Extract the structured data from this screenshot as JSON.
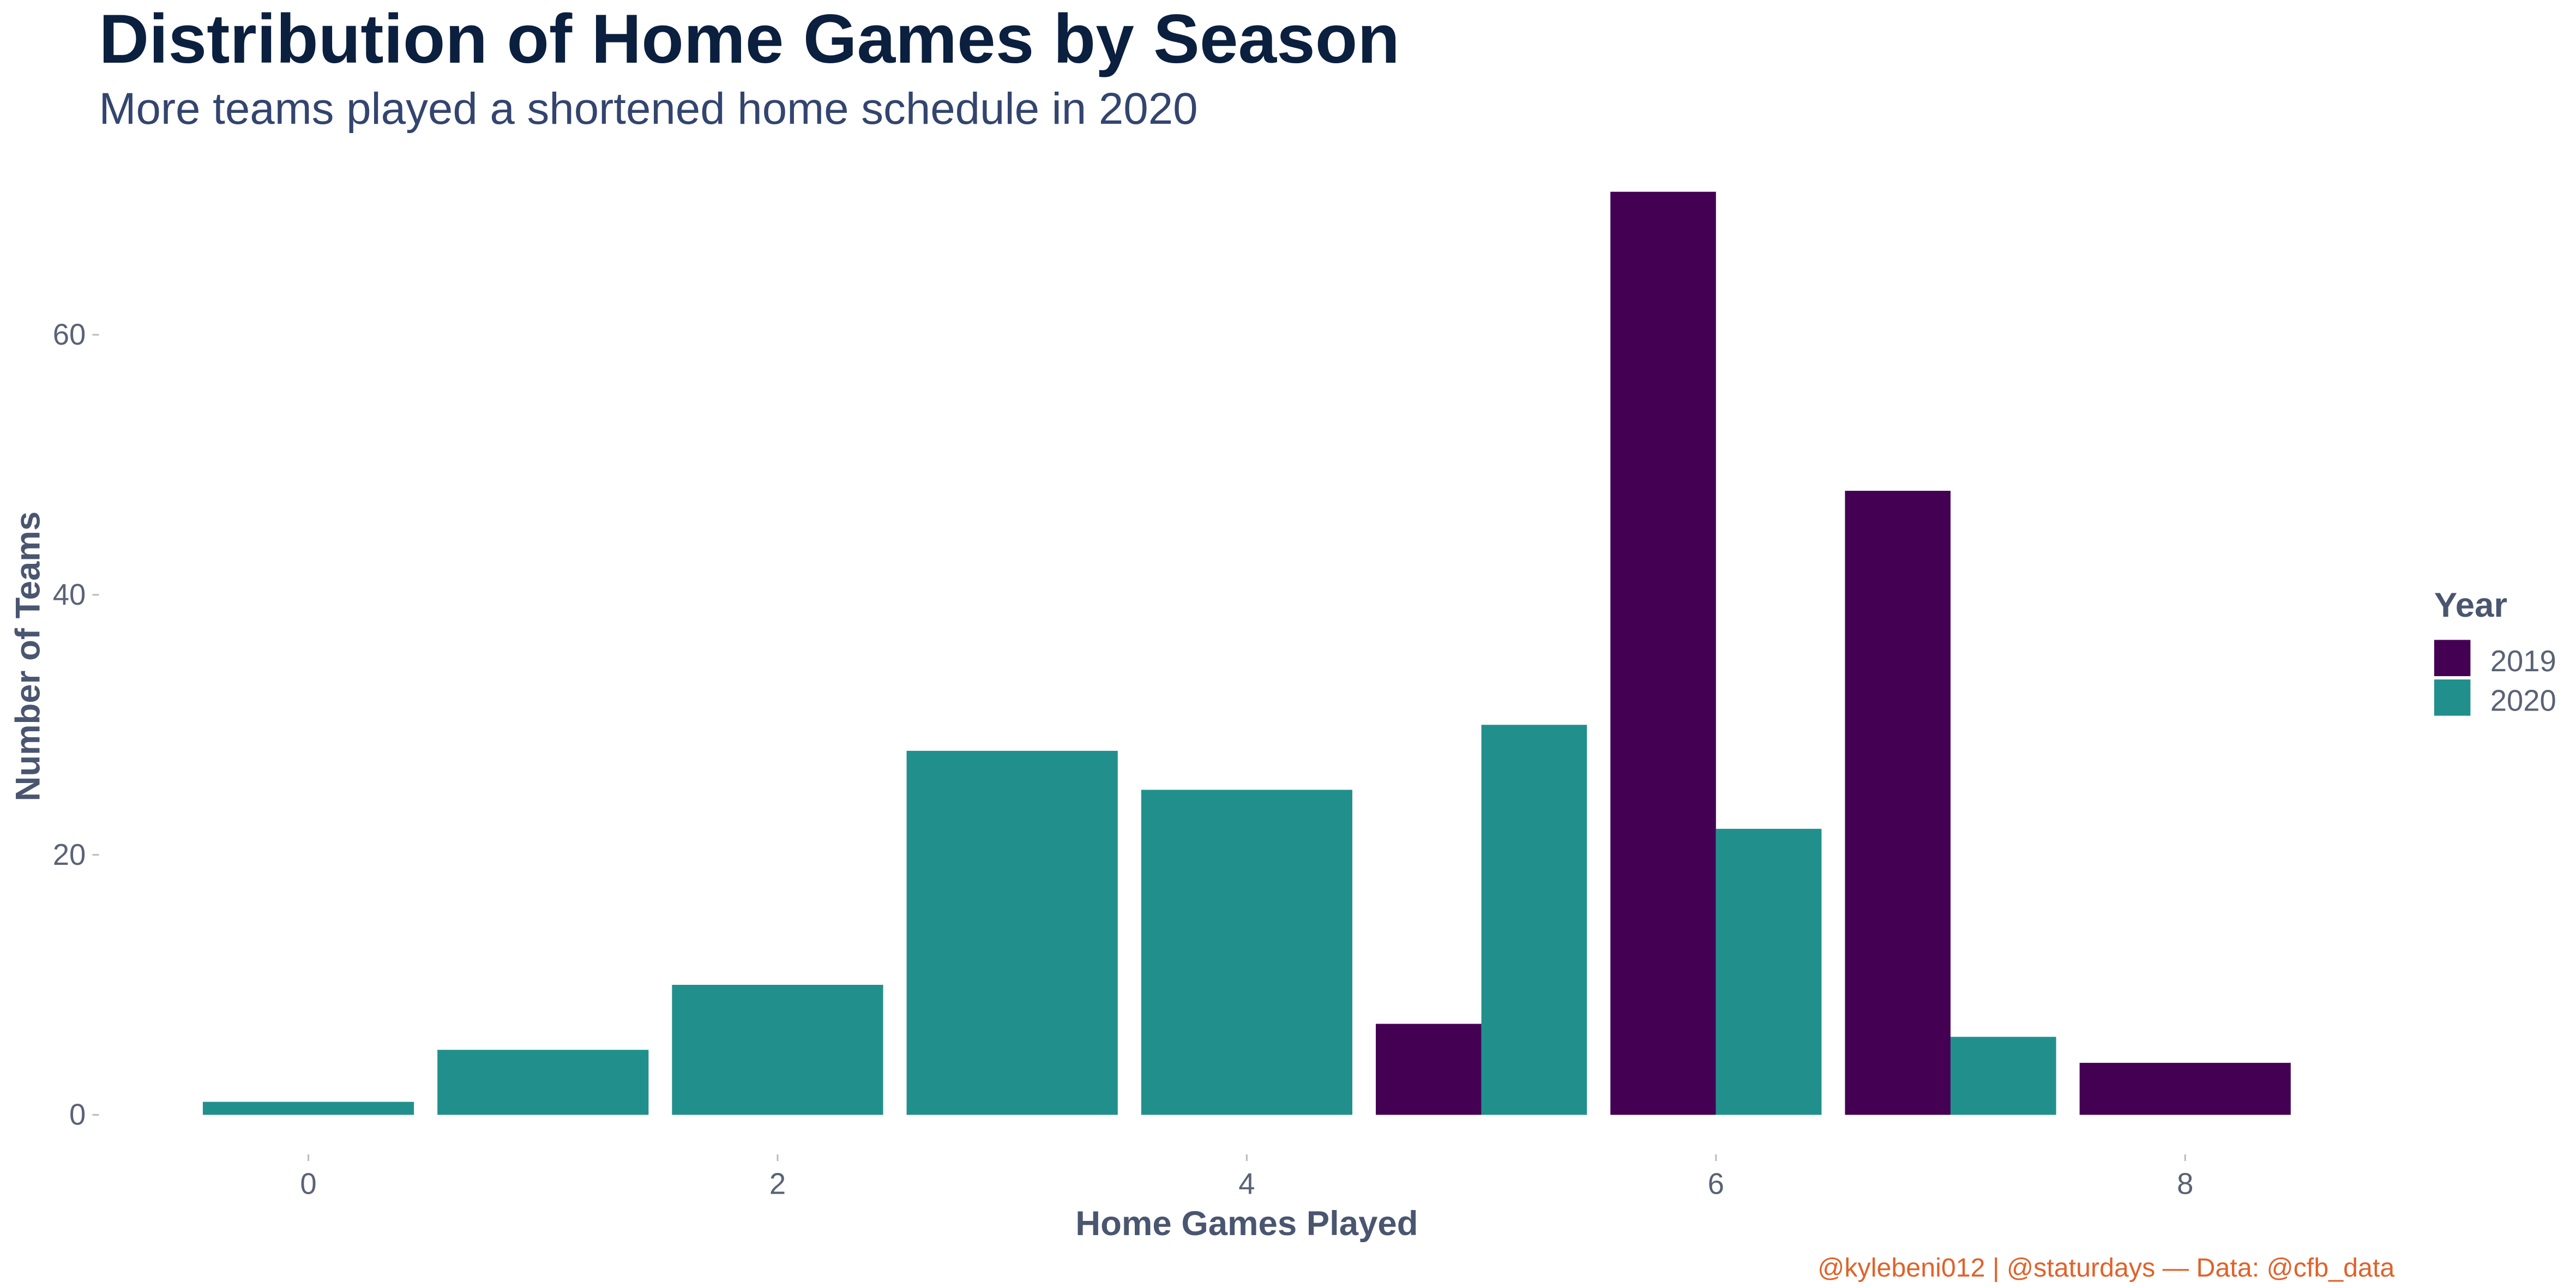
{
  "chart_data": {
    "type": "bar",
    "title": "Distribution of Home Games by Season",
    "subtitle": "More teams played a shortened home schedule in 2020",
    "xlabel": "Home Games Played",
    "ylabel": "Number of Teams",
    "caption": "@kylebeni012 | @staturdays — Data: @cfb_data",
    "x": [
      0,
      1,
      2,
      3,
      4,
      5,
      6,
      7,
      8
    ],
    "x_ticks": [
      "0",
      "2",
      "4",
      "6",
      "8"
    ],
    "y_ticks": [
      "0",
      "20",
      "40",
      "60"
    ],
    "ylim": [
      0,
      72
    ],
    "xlim": [
      -0.5,
      8.5
    ],
    "grid": false,
    "legend": {
      "title": "Year",
      "placement": "right"
    },
    "series": [
      {
        "name": "2019",
        "color": "#440154",
        "values": [
          null,
          null,
          null,
          null,
          null,
          7,
          71,
          48,
          4
        ]
      },
      {
        "name": "2020",
        "color": "#21908c",
        "values": [
          1,
          5,
          10,
          28,
          25,
          30,
          22,
          6,
          null
        ]
      }
    ]
  }
}
